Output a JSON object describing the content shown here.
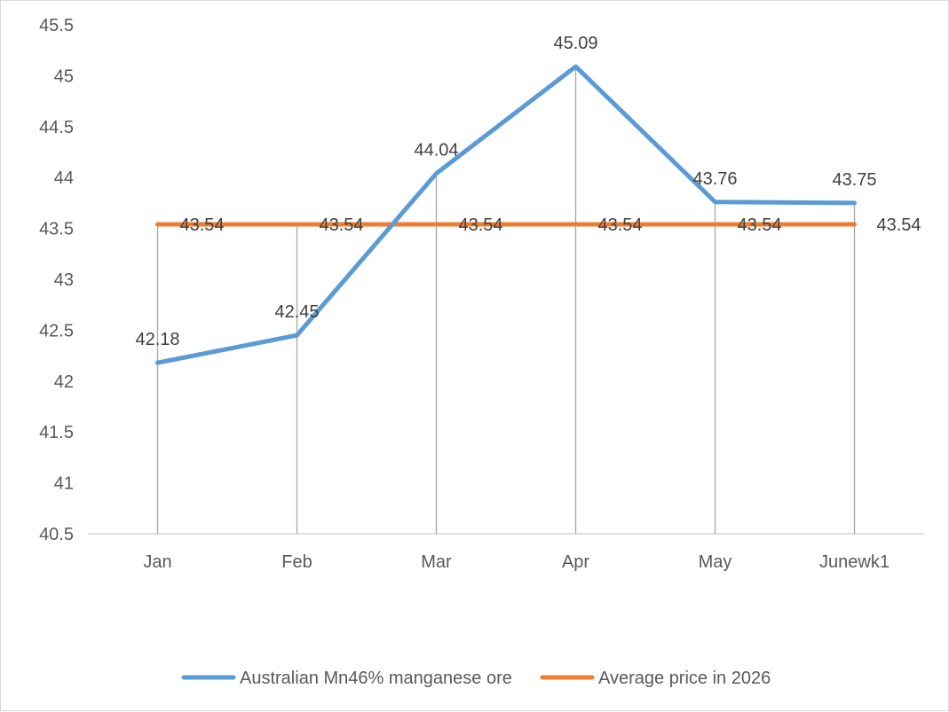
{
  "chart_data": {
    "type": "line",
    "categories": [
      "Jan",
      "Feb",
      "Mar",
      "Apr",
      "May",
      "Junewk1"
    ],
    "series": [
      {
        "name": "Australian Mn46% manganese ore",
        "values": [
          42.18,
          42.45,
          44.04,
          45.09,
          43.76,
          43.75
        ],
        "color": "#5b9bd5",
        "labels": [
          "42.18",
          "42.45",
          "44.04",
          "45.09",
          "43.76",
          "43.75"
        ]
      },
      {
        "name": "Average price in 2026",
        "values": [
          43.54,
          43.54,
          43.54,
          43.54,
          43.54,
          43.54
        ],
        "color": "#ed7d31",
        "labels": [
          "43.54",
          "43.54",
          "43.54",
          "43.54",
          "43.54",
          "43.54"
        ]
      }
    ],
    "yticks": [
      "40.5",
      "41",
      "41.5",
      "42",
      "42.5",
      "43",
      "43.5",
      "44",
      "44.5",
      "45",
      "45.5"
    ],
    "ylim": [
      40.5,
      45.5
    ],
    "drop_lines": true,
    "gridlines": false,
    "legend_position": "bottom"
  }
}
